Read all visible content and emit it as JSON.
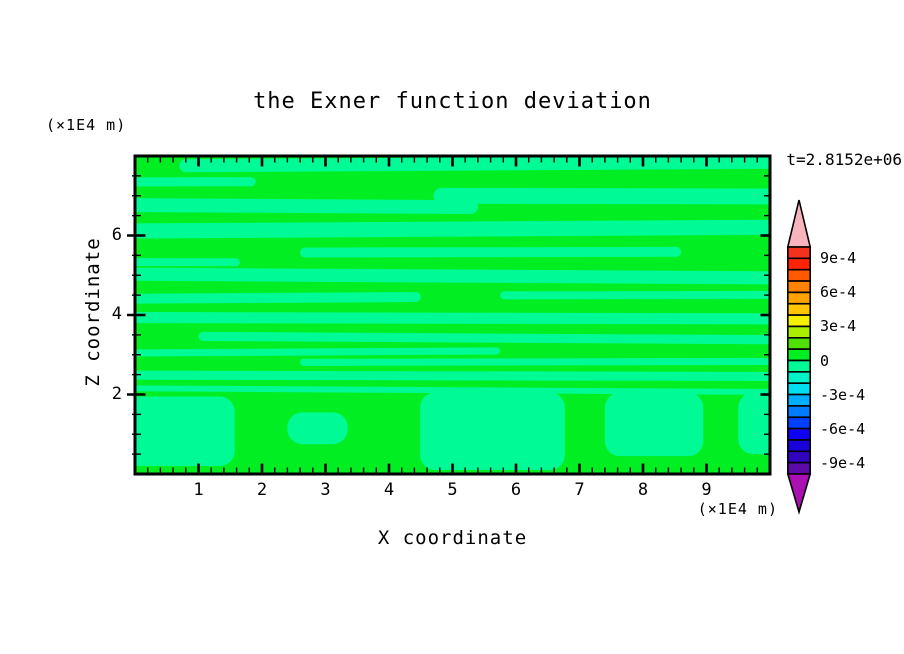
{
  "chart_data": {
    "type": "filled-contour",
    "title": "the Exner function deviation",
    "time_annotation": "t=2.8152e+06",
    "xlabel": "X coordinate",
    "ylabel": "Z coordinate",
    "x_unit": "(×1E4 m)",
    "y_unit": "(×1E4 m)",
    "xlim": [
      0,
      10
    ],
    "ylim": [
      0,
      8
    ],
    "x_ticks": [
      1,
      2,
      3,
      4,
      5,
      6,
      7,
      8,
      9
    ],
    "x_minor_step": 0.2,
    "y_ticks": [
      2,
      4,
      6
    ],
    "y_minor_step": 0.5,
    "grid": false,
    "contour_interval": 0.0001,
    "value_range": [
      -0.001,
      0.001
    ],
    "colorbar": {
      "position": "right",
      "labels": [
        "9e-4",
        "6e-4",
        "3e-4",
        "0",
        "-3e-4",
        "-6e-4",
        "-9e-4"
      ],
      "label_boundary_indices": [
        1,
        4,
        7,
        10,
        13,
        16,
        19
      ],
      "segment_colors_top_to_bottom": [
        "#f2321e",
        "#fb2300",
        "#ff5a00",
        "#ff8200",
        "#ffa300",
        "#ffc500",
        "#f7ef00",
        "#aaee00",
        "#4fdf00",
        "#00ee22",
        "#00fb96",
        "#00f2c8",
        "#00dff0",
        "#00aeff",
        "#007dff",
        "#0040ff",
        "#0d00f5",
        "#1802d8",
        "#3304bd",
        "#5c0aa8"
      ],
      "over_range_arrow_color": "#f8b4bc",
      "under_range_arrow_color": "#ab10b2"
    },
    "field": {
      "description": "Two contour bands visible: positive background green with horizontal mint negative streaks; lower fifth mostly negative (mint) blobs with green gaps",
      "positive_band": {
        "range": [
          0,
          0.0001
        ],
        "color": "#00ee22"
      },
      "negative_band": {
        "range": [
          -0.0001,
          0
        ],
        "color": "#00fb96"
      },
      "negative_streaks_data_coords": [
        [
          0.7,
          10,
          7.8,
          0.33
        ],
        [
          0,
          1.9,
          7.35,
          0.23
        ],
        [
          4.7,
          10,
          6.99,
          0.4
        ],
        [
          0,
          5.4,
          6.74,
          0.35
        ],
        [
          0,
          10,
          6.16,
          0.38
        ],
        [
          2.6,
          8.6,
          5.58,
          0.25
        ],
        [
          0,
          1.65,
          5.33,
          0.2
        ],
        [
          0,
          10,
          4.98,
          0.33
        ],
        [
          0,
          4.5,
          4.43,
          0.25
        ],
        [
          5.75,
          10,
          4.5,
          0.2
        ],
        [
          0,
          10,
          3.92,
          0.28
        ],
        [
          1.0,
          10,
          3.42,
          0.23
        ],
        [
          0,
          5.75,
          3.07,
          0.18
        ],
        [
          2.6,
          10,
          2.82,
          0.18
        ],
        [
          0,
          10,
          2.47,
          0.23
        ],
        [
          0,
          10,
          2.11,
          0.15
        ]
      ],
      "negative_blobs_data_coords": [
        [
          0,
          1.57,
          0.2,
          1.95
        ],
        [
          2.4,
          3.35,
          0.75,
          1.55
        ],
        [
          4.49,
          6.77,
          0.1,
          2.05
        ],
        [
          7.4,
          8.95,
          0.45,
          2.05
        ],
        [
          9.5,
          10,
          0.5,
          2.05
        ]
      ]
    }
  }
}
